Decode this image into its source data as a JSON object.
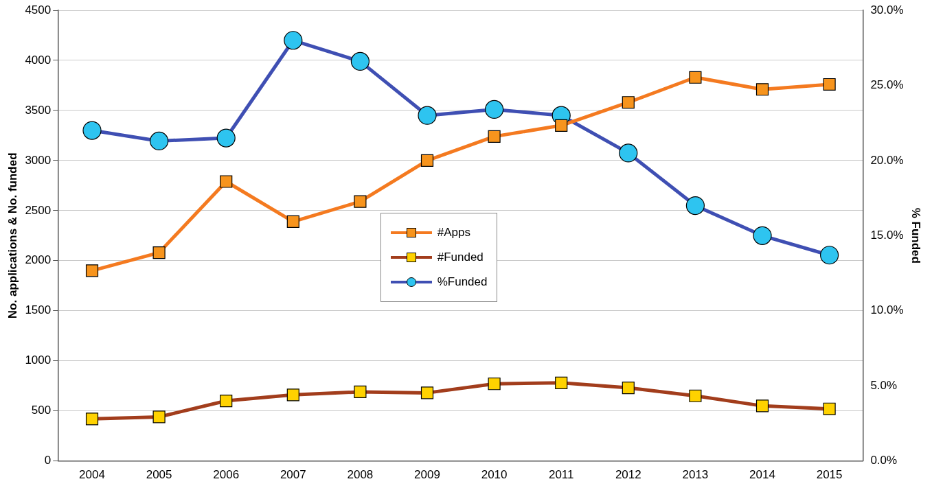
{
  "chart_data": {
    "type": "line",
    "categories": [
      "2004",
      "2005",
      "2006",
      "2007",
      "2008",
      "2009",
      "2010",
      "2011",
      "2012",
      "2013",
      "2014",
      "2015"
    ],
    "ylabel": "No. applications & No. funded",
    "y2label": "% Funded",
    "ylim": [
      0,
      4500
    ],
    "yticks": [
      0,
      500,
      1000,
      1500,
      2000,
      2500,
      3000,
      3500,
      4000,
      4500
    ],
    "y2lim": [
      0,
      30
    ],
    "y2ticks": [
      {
        "value": 0,
        "label": "0.0%"
      },
      {
        "value": 5,
        "label": "5.0%"
      },
      {
        "value": 10,
        "label": "10.0%"
      },
      {
        "value": 15,
        "label": "15.0%"
      },
      {
        "value": 20,
        "label": "20.0%"
      },
      {
        "value": 25,
        "label": "25.0%"
      },
      {
        "value": 30,
        "label": "30.0%"
      }
    ],
    "grid": "y",
    "legend": "center",
    "line_style": "solid",
    "series": [
      {
        "name": "#Apps",
        "color": "#f47a20",
        "marker": "square",
        "values": [
          1900,
          2080,
          2790,
          2390,
          2590,
          3000,
          3240,
          3350,
          3580,
          3830,
          3710,
          3760
        ]
      },
      {
        "name": "#Funded",
        "color": "#a23d1c",
        "marker": "square",
        "values": [
          420,
          440,
          600,
          660,
          690,
          680,
          770,
          780,
          730,
          650,
          550,
          520
        ]
      },
      {
        "name": "%Funded",
        "color": "#3f4fb3",
        "marker": "circle",
        "axis": "y2",
        "values": [
          22.0,
          21.3,
          21.5,
          28.0,
          26.6,
          23.0,
          23.4,
          23.0,
          20.5,
          17.0,
          15.0,
          13.7
        ]
      }
    ]
  }
}
